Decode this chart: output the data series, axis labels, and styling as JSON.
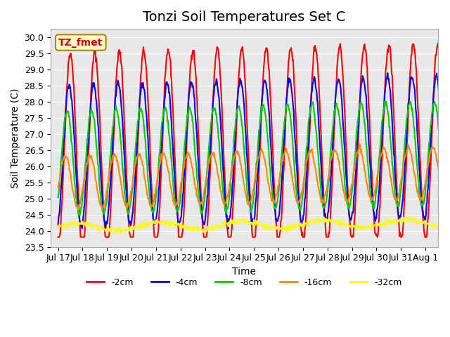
{
  "title": "Tonzi Soil Temperatures Set C",
  "xlabel": "Time",
  "ylabel": "Soil Temperature (C)",
  "ylim": [
    23.5,
    30.25
  ],
  "n_days": 16,
  "xtick_labels": [
    "Jul 17",
    "Jul 18",
    "Jul 19",
    "Jul 20",
    "Jul 21",
    "Jul 22",
    "Jul 23",
    "Jul 24",
    "Jul 25",
    "Jul 26",
    "Jul 27",
    "Jul 28",
    "Jul 29",
    "Jul 30",
    "Jul 31",
    "Aug 1"
  ],
  "series": [
    {
      "label": "-2cm",
      "color": "#ff0000",
      "lw": 1.5
    },
    {
      "label": "-4cm",
      "color": "#0000ff",
      "lw": 1.5
    },
    {
      "label": "-8cm",
      "color": "#00cc00",
      "lw": 1.5
    },
    {
      "label": "-16cm",
      "color": "#ff8800",
      "lw": 1.5
    },
    {
      "label": "-32cm",
      "color": "#ffff00",
      "lw": 1.5
    }
  ],
  "legend_box_label": "TZ_fmet",
  "legend_box_facecolor": "#ffffcc",
  "legend_box_edgecolor": "#aa8800",
  "bg_color": "#e8e8e8",
  "fig_bg_color": "#ffffff",
  "title_fontsize": 14,
  "axis_fontsize": 10,
  "tick_fontsize": 9
}
